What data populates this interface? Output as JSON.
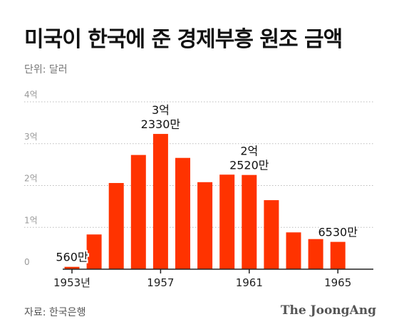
{
  "header": {
    "title": "미국이 한국에 준 경제부흥 원조 금액",
    "unit": "단위: 달러"
  },
  "footer": {
    "source": "자료: 한국은행",
    "brand": "The JoongAng"
  },
  "colors": {
    "bar": "#ff3300",
    "grid": "#bbbbbb",
    "axis": "#222222",
    "tick_label": "#999999"
  },
  "chart_data": {
    "type": "bar",
    "title": "미국이 한국에 준 경제부흥 원조 금액",
    "unit": "단위: 달러",
    "ylim": [
      0,
      40000
    ],
    "yticks": [
      {
        "value": 0,
        "label": "0"
      },
      {
        "value": 10000,
        "label": "1억"
      },
      {
        "value": 20000,
        "label": "2억"
      },
      {
        "value": 30000,
        "label": "3억"
      },
      {
        "value": 40000,
        "label": "4억"
      }
    ],
    "grid": true,
    "categories": [
      "1953",
      "1954",
      "1955",
      "1956",
      "1957",
      "1958",
      "1959",
      "1960",
      "1961",
      "1962",
      "1963",
      "1964",
      "1965"
    ],
    "xtick_labels": [
      {
        "category": "1953",
        "label": "1953년"
      },
      {
        "category": "1957",
        "label": "1957"
      },
      {
        "category": "1961",
        "label": "1961"
      },
      {
        "category": "1965",
        "label": "1965"
      }
    ],
    "values": [
      560,
      8300,
      20600,
      27300,
      32330,
      26600,
      20800,
      22600,
      22520,
      16500,
      8800,
      7200,
      6530
    ],
    "annotations": [
      {
        "category": "1953",
        "lines": [
          "560만"
        ]
      },
      {
        "category": "1957",
        "lines": [
          "3억",
          "2330만"
        ]
      },
      {
        "category": "1961",
        "lines": [
          "2억",
          "2520만"
        ]
      },
      {
        "category": "1965",
        "lines": [
          "6530만"
        ]
      }
    ]
  }
}
